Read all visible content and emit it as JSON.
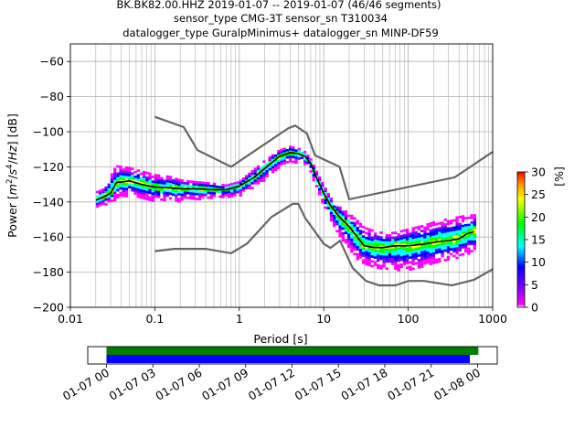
{
  "title_lines": [
    "BK.BK82.00.HHZ   2019-01-07 -- 2019-01-07  (46/46 segments)",
    "sensor_type CMG-3T sensor_sn T310034",
    "datalogger_type GuralpMinimus+ datalogger_sn MINP-DF59"
  ],
  "colorbar": {
    "label": "[%]",
    "ticks": [
      "0",
      "5",
      "10",
      "15",
      "20",
      "25",
      "30"
    ],
    "min": 0,
    "max": 30
  },
  "chart_data": [
    {
      "type": "heatmap",
      "xlabel": "Period [s]",
      "ylabel_parts": [
        "Power [",
        "m",
        "2",
        "/",
        "s",
        "4",
        "/",
        "Hz",
        "] [dB]"
      ],
      "x_scale": "log",
      "xlim": [
        0.01,
        1000
      ],
      "ylim": [
        -200,
        -50
      ],
      "x_ticks": [
        {
          "value": 0.01,
          "label": "0.01"
        },
        {
          "value": 0.1,
          "label": "0.1"
        },
        {
          "value": 1,
          "label": "1"
        },
        {
          "value": 10,
          "label": "10"
        },
        {
          "value": 100,
          "label": "100"
        },
        {
          "value": 1000,
          "label": "1000"
        }
      ],
      "y_ticks": [
        {
          "value": -60,
          "label": "−60"
        },
        {
          "value": -80,
          "label": "−80"
        },
        {
          "value": -100,
          "label": "−100"
        },
        {
          "value": -120,
          "label": "−120"
        },
        {
          "value": -140,
          "label": "−140"
        },
        {
          "value": -160,
          "label": "−160"
        },
        {
          "value": -180,
          "label": "−180"
        },
        {
          "value": -200,
          "label": "−200"
        }
      ],
      "grid": true,
      "noise_models": [
        {
          "x": [
            0.1,
            0.22,
            0.32,
            0.8,
            3.8,
            4.6,
            6.3,
            7.9,
            15.4,
            20,
            354.8,
            1000
          ],
          "y": [
            -91.5,
            -97.4,
            -110.5,
            -120,
            -98,
            -96.5,
            -101,
            -113.5,
            -120,
            -138.5,
            -126,
            -111.5
          ]
        },
        {
          "x": [
            0.1,
            0.17,
            0.4,
            0.8,
            1.24,
            2.4,
            4.3,
            5,
            6,
            10,
            12,
            15.6,
            21.9,
            31.6,
            45,
            70,
            101,
            154,
            328,
            600,
            1000
          ],
          "y": [
            -168,
            -166.7,
            -166.7,
            -169.2,
            -163.7,
            -148.6,
            -141.1,
            -141.1,
            -149,
            -163.8,
            -166.2,
            -162.1,
            -177.5,
            -185,
            -187.5,
            -187.5,
            -185,
            -185,
            -187.5,
            -184.4,
            -178.3
          ]
        }
      ],
      "mean_curve": {
        "x": [
          0.02,
          0.025,
          0.03,
          0.035,
          0.05,
          0.07,
          0.1,
          0.15,
          0.2,
          0.3,
          0.5,
          0.7,
          1,
          1.5,
          2,
          3,
          4,
          5,
          6,
          7,
          8,
          10,
          12,
          15,
          20,
          25,
          30,
          40,
          50,
          70,
          100,
          150,
          200,
          300,
          400,
          500,
          600
        ],
        "y": [
          -139,
          -137,
          -135,
          -129,
          -128,
          -130,
          -131.5,
          -132,
          -132.5,
          -132.5,
          -133,
          -133,
          -131,
          -126,
          -121,
          -114,
          -112,
          -112.5,
          -114,
          -118,
          -125,
          -135,
          -142,
          -148,
          -154,
          -160,
          -165,
          -166,
          -166,
          -165,
          -165,
          -164,
          -163,
          -162,
          -161,
          -158,
          -157
        ]
      },
      "pdf_band": {
        "x": [
          0.02,
          0.025,
          0.03,
          0.035,
          0.05,
          0.07,
          0.1,
          0.15,
          0.2,
          0.3,
          0.5,
          0.7,
          1,
          1.5,
          2,
          3,
          4,
          5,
          6,
          7,
          8,
          10,
          12,
          15,
          20,
          25,
          30,
          40,
          50,
          70,
          100,
          150,
          200,
          300,
          400,
          500,
          600
        ],
        "upper": [
          -134,
          -132,
          -125,
          -119,
          -120,
          -122,
          -124,
          -125,
          -127,
          -128,
          -129,
          -130,
          -128,
          -121,
          -116,
          -110,
          -108,
          -109,
          -111,
          -115,
          -121,
          -130,
          -137,
          -142,
          -146,
          -150,
          -154,
          -156,
          -157,
          -157,
          -155,
          -153,
          -151,
          -149,
          -148,
          -147,
          -147
        ],
        "lower": [
          -143,
          -141,
          -140,
          -138,
          -136,
          -137,
          -139,
          -139,
          -139,
          -138,
          -137,
          -137,
          -136,
          -131,
          -127,
          -120,
          -117,
          -117,
          -119,
          -122,
          -130,
          -142,
          -150,
          -158,
          -166,
          -172,
          -175,
          -177,
          -178,
          -179,
          -178,
          -177,
          -175,
          -173,
          -171,
          -169,
          -168
        ]
      }
    },
    {
      "type": "bar",
      "x_ticks": [
        "01-07 00",
        "01-07 03",
        "01-07 06",
        "01-07 09",
        "01-07 12",
        "01-07 15",
        "01-07 18",
        "01-07 21",
        "01-08 00"
      ],
      "bars": [
        {
          "color": "#008000",
          "start_hours": 0,
          "end_hours": 24.05
        },
        {
          "color": "#0000ff",
          "start_hours": 0,
          "end_hours": 23.5
        }
      ]
    }
  ]
}
